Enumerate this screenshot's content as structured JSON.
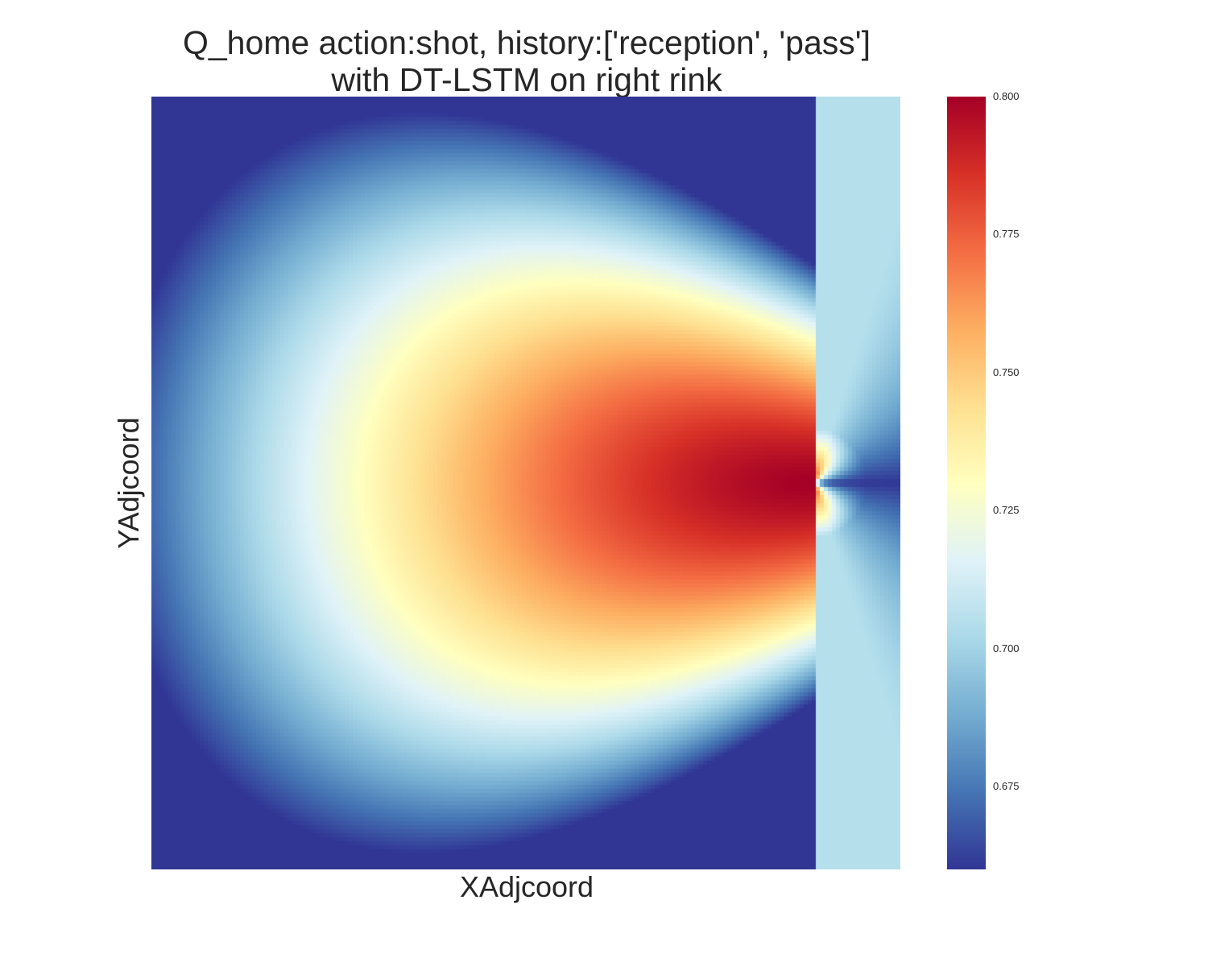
{
  "chart_data": {
    "type": "heatmap",
    "title_lines": [
      "Q_home action:shot, history:['reception', 'pass']",
      "with DT-LSTM on right rink"
    ],
    "xlabel": "XAdjcoord",
    "ylabel": "YAdjcoord",
    "colormap": "RdYlBu_r",
    "value_range": [
      0.66,
      0.8
    ],
    "colorbar_ticks": [
      "0.800",
      "0.775",
      "0.750",
      "0.725",
      "0.700",
      "0.675"
    ],
    "colorbar_tick_values": [
      0.8,
      0.775,
      0.75,
      0.725,
      0.7,
      0.675
    ],
    "grid": false,
    "features": {
      "peak_value": 0.8,
      "peak_x_fraction": 0.885,
      "peak_y_fraction": 0.5,
      "left_corner_value": 0.66,
      "right_edge_behind_peak_value": 0.66,
      "far_left_center_value": 0.7
    }
  }
}
